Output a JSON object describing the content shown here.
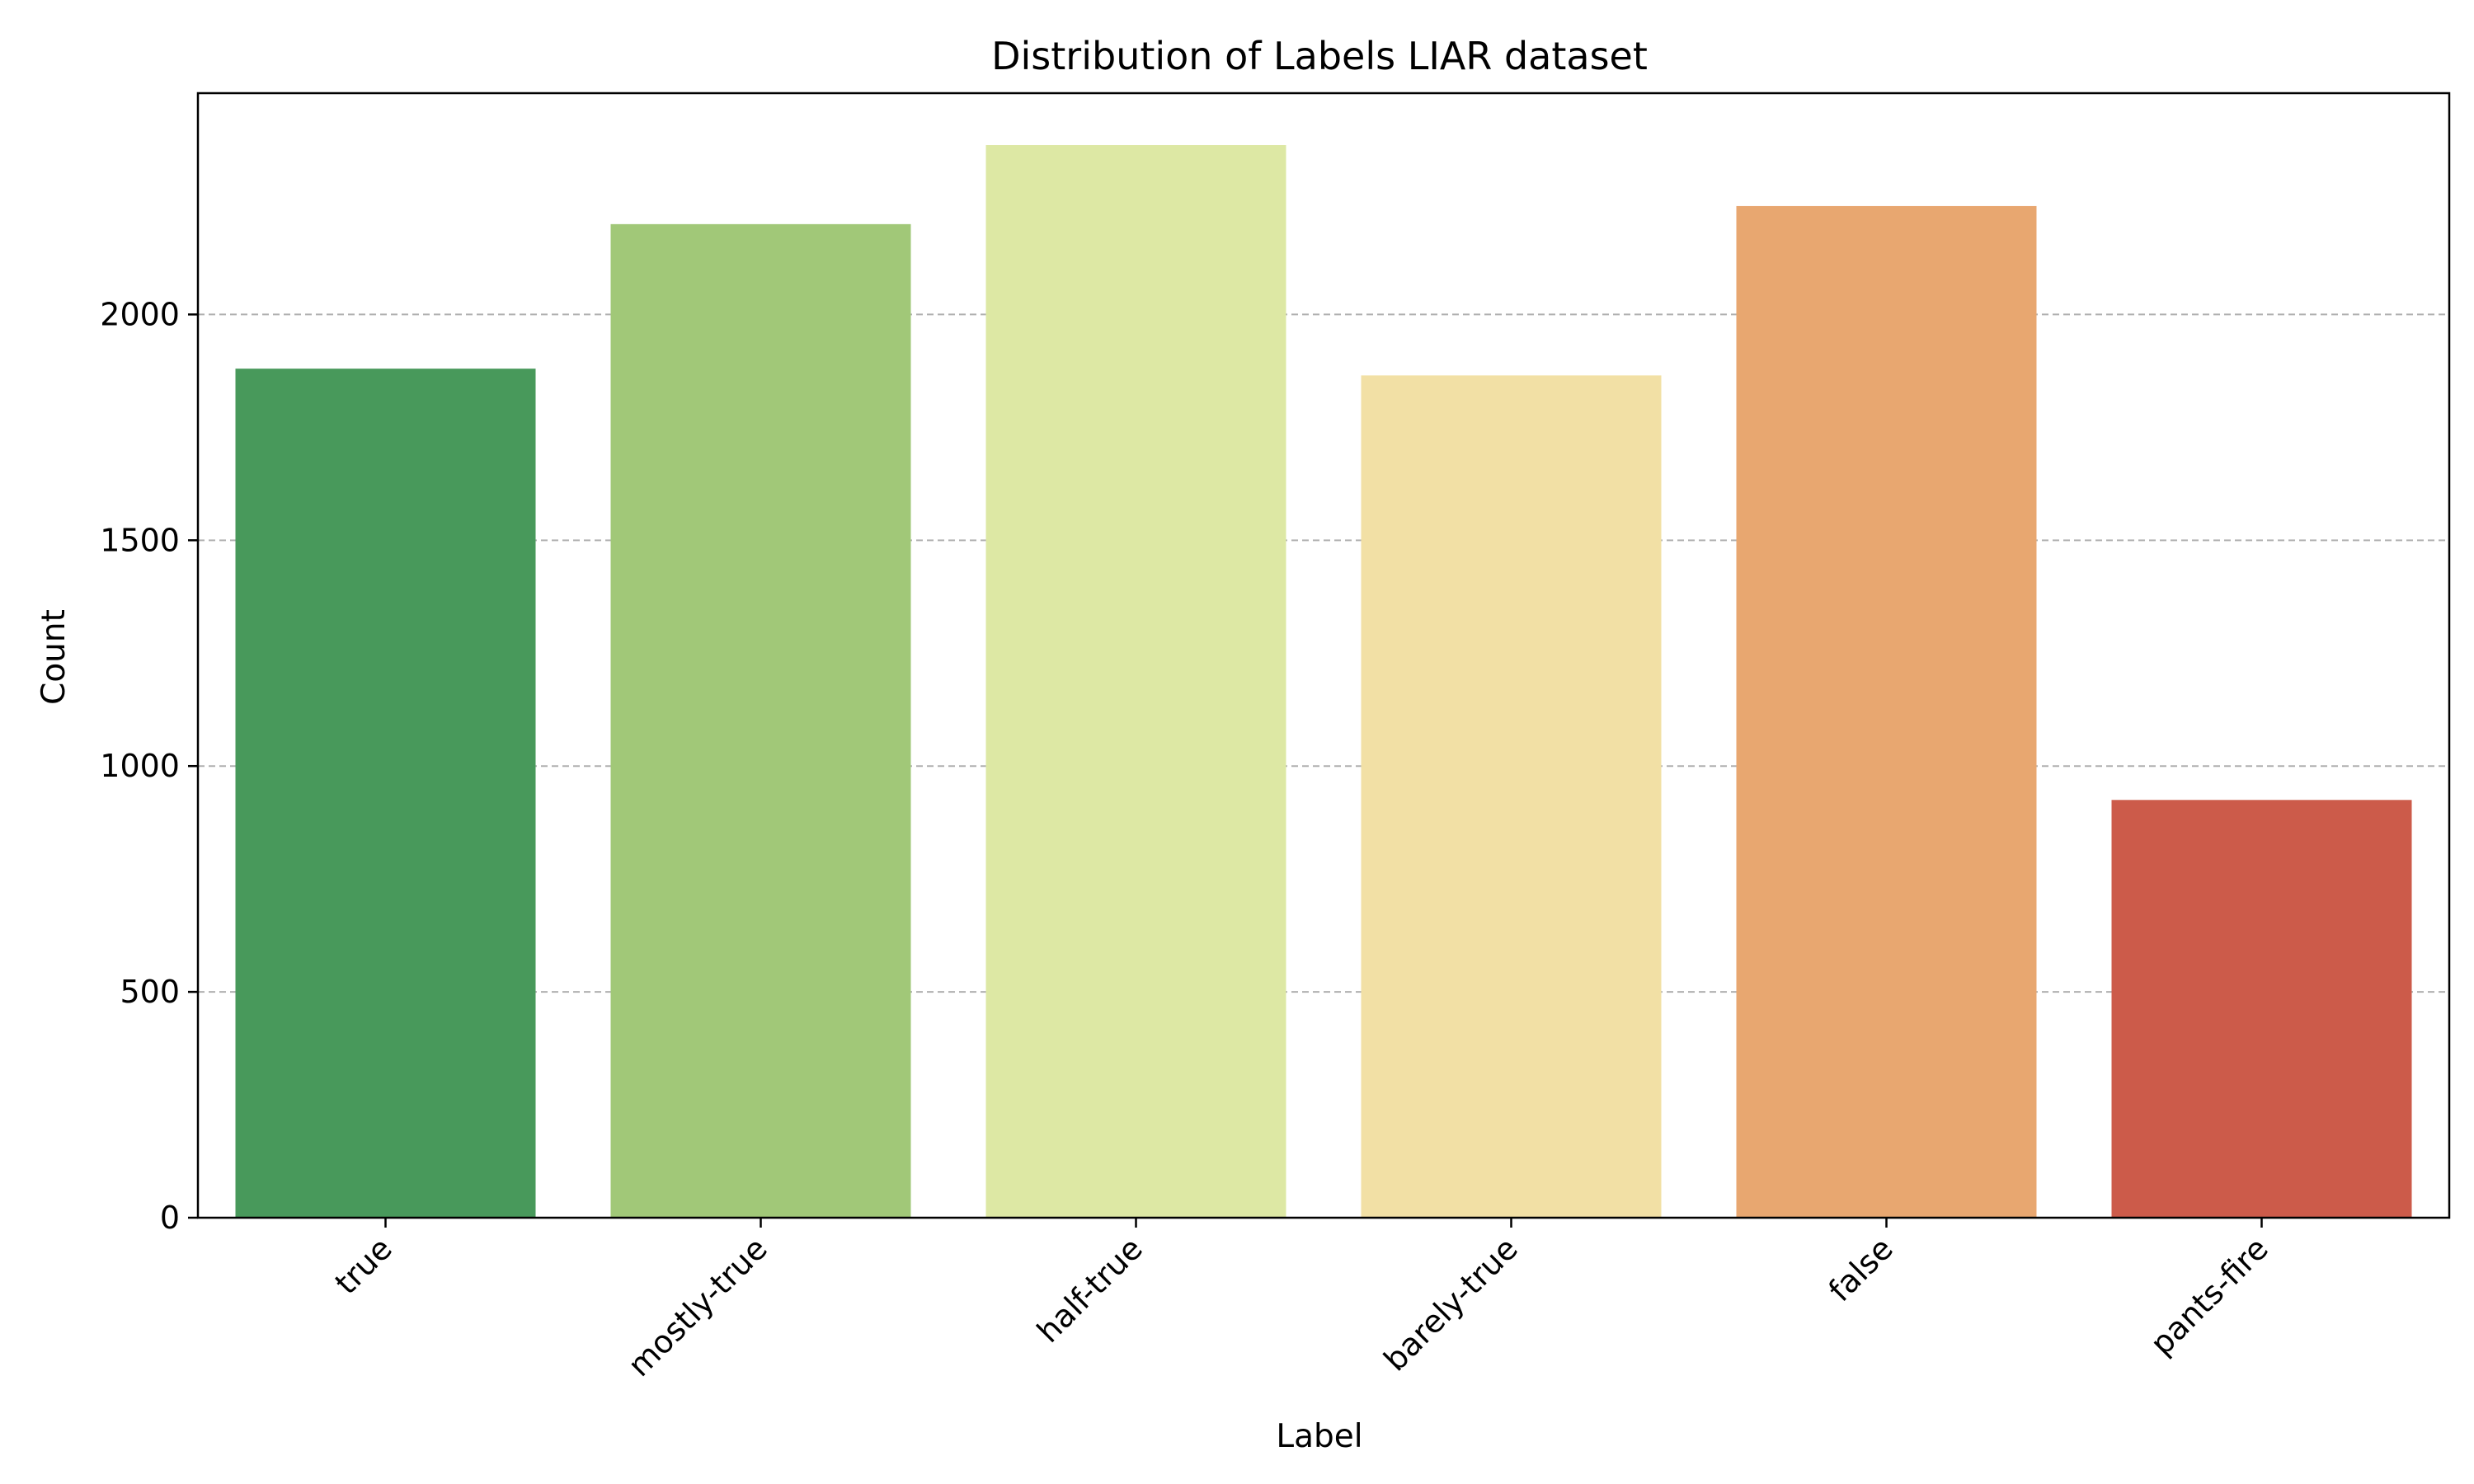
{
  "chart_data": {
    "type": "bar",
    "title": "Distribution of Labels LIAR dataset",
    "xlabel": "Label",
    "ylabel": "Count",
    "categories": [
      "true",
      "mostly-true",
      "half-true",
      "barely-true",
      "false",
      "pants-fire"
    ],
    "values": [
      1880,
      2200,
      2375,
      1865,
      2240,
      925
    ],
    "colors": [
      "#48995b",
      "#a1c878",
      "#dde8a4",
      "#f2e0a5",
      "#e8a770",
      "#cc5b4a"
    ],
    "ylim": [
      0,
      2490
    ],
    "yticks": [
      0,
      500,
      1000,
      1500,
      2000
    ],
    "ytick_labels": [
      "0",
      "500",
      "1000",
      "1500",
      "2000"
    ],
    "grid": {
      "axis": "y",
      "style": "dashed",
      "color": "#b0b0b0"
    },
    "xtick_rotation": -45
  }
}
